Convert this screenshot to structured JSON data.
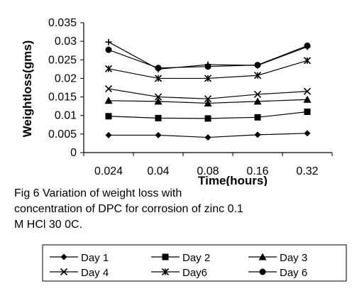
{
  "chart_data": {
    "type": "line",
    "title": "",
    "xlabel": "Time(hours)",
    "ylabel": "Weightloss(gms)",
    "categories": [
      "0.024",
      "0.04",
      "0.08",
      "0.16",
      "0.32"
    ],
    "ylim": [
      0,
      0.035
    ],
    "yticks": [
      "0",
      "0.005",
      "0.01",
      "0.015",
      "0.02",
      "0.025",
      "0.03",
      "0.035"
    ],
    "grid": false,
    "legend_position": "bottom",
    "series": [
      {
        "name": "Day 1",
        "marker": "diamond",
        "values": [
          0.0047,
          0.0047,
          0.0041,
          0.0048,
          0.0052
        ]
      },
      {
        "name": "Day 2",
        "marker": "square",
        "values": [
          0.0098,
          0.0093,
          0.0092,
          0.0095,
          0.011
        ]
      },
      {
        "name": "Day 3",
        "marker": "triangle",
        "values": [
          0.014,
          0.0138,
          0.0133,
          0.0138,
          0.0143
        ]
      },
      {
        "name": "Day 4",
        "marker": "x",
        "values": [
          0.0172,
          0.015,
          0.0145,
          0.0157,
          0.0165
        ]
      },
      {
        "name": "Day6",
        "marker": "star",
        "values": [
          0.0226,
          0.02,
          0.02,
          0.0208,
          0.0248
        ]
      },
      {
        "name": "Day 6",
        "marker": "circle",
        "values": [
          0.0277,
          0.0228,
          0.0232,
          0.0236,
          0.0288
        ]
      },
      {
        "name": "",
        "marker": "plus",
        "values": [
          0.0298,
          0.0225,
          0.0237,
          0.0235,
          0.0285
        ]
      }
    ]
  },
  "caption": {
    "lines": [
      "Fig   6 Variation of weight loss  with",
      "concentration of DPC  for corrosion of zinc 0.1",
      "M HCl 30 0C."
    ]
  }
}
